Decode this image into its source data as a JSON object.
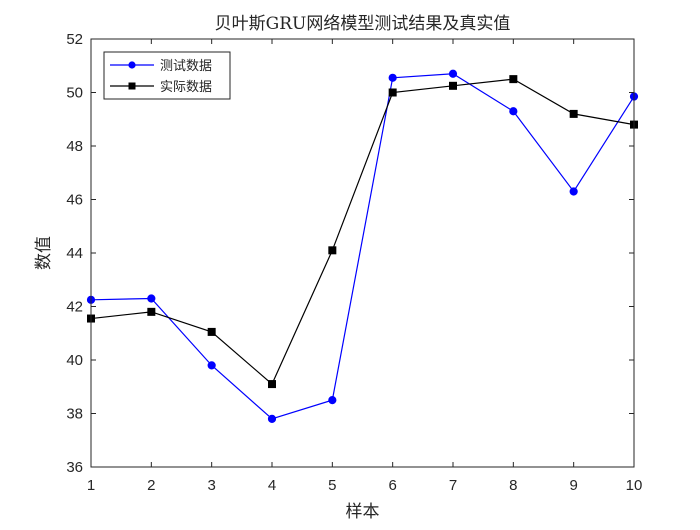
{
  "chart_data": {
    "type": "line",
    "title": "贝叶斯GRU网络模型测试结果及真实值",
    "xlabel": "样本",
    "ylabel": "数值",
    "x": [
      1,
      2,
      3,
      4,
      5,
      6,
      7,
      8,
      9,
      10
    ],
    "xlim": [
      1,
      10
    ],
    "ylim": [
      36,
      52
    ],
    "xticks": [
      1,
      2,
      3,
      4,
      5,
      6,
      7,
      8,
      9,
      10
    ],
    "yticks": [
      36,
      38,
      40,
      42,
      44,
      46,
      48,
      50,
      52
    ],
    "grid": false,
    "legend_position": "top-left",
    "series": [
      {
        "name": "测试数据",
        "color": "#0000ff",
        "marker": "circle",
        "values": [
          42.25,
          42.3,
          39.8,
          37.8,
          38.5,
          50.55,
          50.7,
          49.3,
          46.3,
          49.85
        ]
      },
      {
        "name": "实际数据",
        "color": "#000000",
        "marker": "square",
        "values": [
          41.55,
          41.8,
          41.05,
          39.1,
          44.1,
          50.0,
          50.25,
          50.5,
          49.2,
          48.8
        ]
      }
    ]
  }
}
